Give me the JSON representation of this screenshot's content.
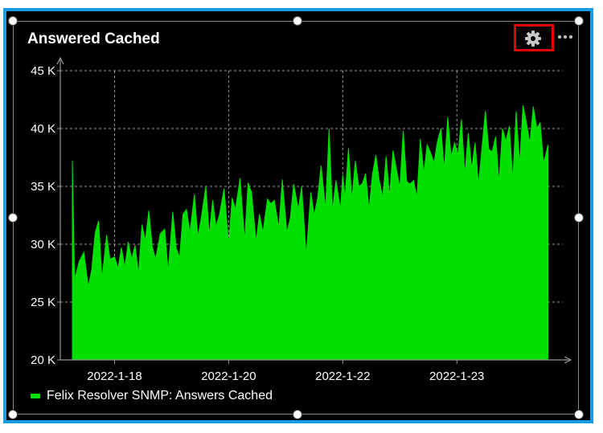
{
  "title": "Answered Cached",
  "icons": {
    "settings": "gear-icon",
    "more": "more-options-icon"
  },
  "colors": {
    "series": "#00e000",
    "border_selected": "#1a9be6",
    "highlight": "#e00000"
  },
  "legend": {
    "label": "Felix Resolver SNMP: Answers Cached"
  },
  "chart_data": {
    "type": "area",
    "yticks": [
      "20 K",
      "25 K",
      "30 K",
      "35 K",
      "40 K",
      "45 K"
    ],
    "ylim": [
      20000,
      45000
    ],
    "xticks": [
      {
        "label": "2022-1-18",
        "x": 1.0
      },
      {
        "label": "2022-1-20",
        "x": 2.0
      },
      {
        "label": "2022-1-22",
        "x": 3.0
      },
      {
        "label": "2022-1-23",
        "x": 4.0
      }
    ],
    "xlim": [
      0.63,
      4.83
    ],
    "grid": true,
    "legend_position": "bottom-left",
    "series": [
      {
        "name": "Felix Resolver SNMP: Answers Cached",
        "x": [
          0.63,
          0.65,
          0.69,
          0.73,
          0.77,
          0.8,
          0.83,
          0.86,
          0.89,
          0.93,
          0.96,
          1.0,
          1.03,
          1.06,
          1.09,
          1.12,
          1.15,
          1.18,
          1.21,
          1.24,
          1.27,
          1.3,
          1.33,
          1.36,
          1.4,
          1.44,
          1.47,
          1.51,
          1.54,
          1.57,
          1.6,
          1.63,
          1.66,
          1.7,
          1.73,
          1.76,
          1.8,
          1.83,
          1.86,
          1.89,
          1.92,
          1.96,
          2.0,
          2.03,
          2.06,
          2.1,
          2.14,
          2.17,
          2.2,
          2.24,
          2.27,
          2.3,
          2.34,
          2.37,
          2.4,
          2.44,
          2.47,
          2.51,
          2.54,
          2.57,
          2.61,
          2.64,
          2.68,
          2.72,
          2.75,
          2.78,
          2.81,
          2.85,
          2.88,
          2.91,
          2.94,
          2.98,
          3.0,
          3.02,
          3.05,
          3.08,
          3.11,
          3.14,
          3.17,
          3.2,
          3.23,
          3.26,
          3.29,
          3.32,
          3.35,
          3.38,
          3.41,
          3.44,
          3.47,
          3.5,
          3.53,
          3.56,
          3.59,
          3.62,
          3.65,
          3.68,
          3.71,
          3.74,
          3.77,
          3.8,
          3.83,
          3.86,
          3.89,
          3.92,
          3.95,
          3.98,
          4.01,
          4.04,
          4.07,
          4.1,
          4.13,
          4.16,
          4.19,
          4.22,
          4.25,
          4.28,
          4.31,
          4.34,
          4.37,
          4.4,
          4.43,
          4.46,
          4.49,
          4.52,
          4.55,
          4.58,
          4.61,
          4.64,
          4.67,
          4.7,
          4.73,
          4.76,
          4.8
        ],
        "y": [
          37200,
          26900,
          28500,
          29300,
          26300,
          27800,
          31000,
          32000,
          27000,
          30800,
          28700,
          28900,
          27900,
          29700,
          28000,
          30200,
          28700,
          29900,
          27400,
          31700,
          30300,
          32900,
          29800,
          28700,
          30900,
          31300,
          27600,
          32800,
          29700,
          28800,
          32600,
          33000,
          31000,
          34300,
          30600,
          32300,
          35000,
          30800,
          33800,
          31500,
          32600,
          34800,
          30000,
          34000,
          33000,
          35700,
          30300,
          35300,
          34500,
          30200,
          32600,
          31000,
          33900,
          33500,
          33800,
          31400,
          35600,
          31000,
          32200,
          35200,
          33000,
          35000,
          29000,
          34500,
          32500,
          34000,
          36800,
          33000,
          40000,
          32800,
          35500,
          33000,
          36000,
          34000,
          38300,
          33800,
          37200,
          35000,
          35200,
          36100,
          33000,
          36000,
          37700,
          35500,
          34000,
          37600,
          34100,
          38100,
          36500,
          34900,
          39800,
          35400,
          35200,
          35500,
          34000,
          39100,
          36100,
          38600,
          37900,
          37000,
          38900,
          40000,
          36400,
          41000,
          37500,
          38800,
          37700,
          40800,
          36000,
          39600,
          36500,
          38800,
          35100,
          38300,
          41500,
          38200,
          38000,
          39300,
          35300,
          40000,
          38900,
          40200,
          35400,
          41500,
          36800,
          42000,
          40500,
          38700,
          41900,
          40000,
          40500,
          37000,
          38600
        ]
      }
    ]
  }
}
